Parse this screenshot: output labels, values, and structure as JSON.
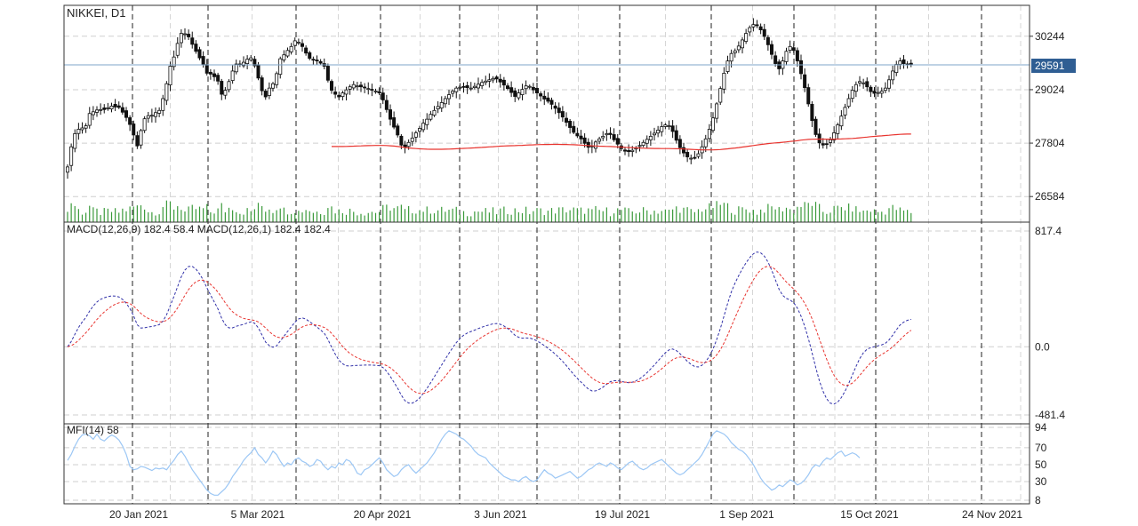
{
  "chart_data": {
    "type": "candlestick",
    "symbol_label": "NIKKEI, D1",
    "current_price": "29591",
    "price_axis": {
      "ticks": [
        "30244",
        "29024",
        "27804",
        "26584"
      ],
      "ylim": [
        26000,
        30950
      ]
    },
    "x_axis": {
      "ticks": [
        "20 Jan 2021",
        "5 Mar 2021",
        "20 Apr 2021",
        "3 Jun 2021",
        "19 Jul 2021",
        "1 Sep 2021",
        "15 Oct 2021",
        "24 Nov 2021"
      ]
    },
    "closes": [
      27260,
      27720,
      28020,
      28120,
      28150,
      28200,
      28480,
      28520,
      28560,
      28570,
      28570,
      28610,
      28650,
      28630,
      28620,
      28510,
      28390,
      28230,
      27990,
      27740,
      28090,
      28360,
      28430,
      28440,
      28500,
      28550,
      28820,
      29160,
      29560,
      29770,
      30080,
      30310,
      30300,
      30230,
      30060,
      29900,
      29750,
      29600,
      29400,
      29380,
      29320,
      29220,
      28920,
      29010,
      29210,
      29450,
      29610,
      29600,
      29650,
      29720,
      29750,
      29570,
      29290,
      29000,
      28860,
      29060,
      29160,
      29390,
      29730,
      29820,
      29920,
      30010,
      30140,
      30110,
      30010,
      29860,
      29740,
      29710,
      29680,
      29630,
      29560,
      29240,
      29010,
      28920,
      28860,
      28950,
      29020,
      29090,
      29140,
      29110,
      29090,
      29070,
      29050,
      29020,
      28990,
      28950,
      28790,
      28570,
      28350,
      28170,
      27990,
      27760,
      27710,
      27820,
      27920,
      28040,
      28140,
      28260,
      28350,
      28460,
      28550,
      28640,
      28730,
      28820,
      28910,
      28990,
      29060,
      29080,
      29080,
      29070,
      29060,
      29100,
      29150,
      29190,
      29220,
      29250,
      29280,
      29270,
      29200,
      29130,
      29050,
      28960,
      28870,
      28950,
      29030,
      29110,
      29100,
      29020,
      28950,
      28880,
      28810,
      28760,
      28690,
      28600,
      28500,
      28400,
      28280,
      28160,
      28050,
      27970,
      27900,
      27800,
      27710,
      27720,
      27830,
      27900,
      27960,
      28020,
      28000,
      27880,
      27780,
      27680,
      27620,
      27610,
      27640,
      27690,
      27750,
      27820,
      27890,
      27960,
      28030,
      28100,
      28180,
      28220,
      28200,
      28070,
      27870,
      27700,
      27580,
      27490,
      27460,
      27470,
      27560,
      27720,
      27900,
      28120,
      28380,
      28700,
      29050,
      29400,
      29680,
      29850,
      29910,
      30020,
      30160,
      30310,
      30440,
      30510,
      30490,
      30390,
      30240,
      30050,
      29830,
      29620,
      29500,
      29680,
      29900,
      30010,
      29920,
      29680,
      29390,
      29070,
      28700,
      28320,
      28000,
      27810,
      27760,
      27780,
      27880,
      28040,
      28220,
      28420,
      28620,
      28820,
      29010,
      29140,
      29210,
      29180,
      29090,
      28980,
      28940,
      28960,
      28990,
      29060,
      29250,
      29450,
      29600,
      29680,
      29620,
      29600,
      29591
    ],
    "ma_label": "",
    "macd": {
      "label": "MACD(12,26,9) 182.4 58.4 MACD(12,26,1) 182.4 182.4",
      "ticks": [
        "817.4",
        "0.0",
        "-481.4"
      ],
      "ylim": [
        -481.4,
        817.4
      ]
    },
    "mfi": {
      "label": "MFI(14) 58",
      "ticks": [
        "94",
        "70",
        "50",
        "30",
        "8"
      ],
      "ylim": [
        8,
        94
      ],
      "values": [
        55,
        62,
        72,
        80,
        85,
        86,
        84,
        80,
        86,
        80,
        78,
        82,
        85,
        83,
        79,
        72,
        62,
        48,
        44,
        45,
        48,
        47,
        45,
        43,
        46,
        45,
        46,
        44,
        50,
        55,
        62,
        66,
        60,
        52,
        44,
        38,
        32,
        26,
        20,
        16,
        14,
        14,
        18,
        22,
        28,
        36,
        42,
        48,
        55,
        60,
        64,
        70,
        62,
        58,
        52,
        58,
        66,
        62,
        54,
        48,
        52,
        50,
        56,
        58,
        54,
        52,
        48,
        50,
        56,
        54,
        48,
        44,
        48,
        46,
        52,
        50,
        56,
        54,
        48,
        40,
        38,
        44,
        46,
        50,
        54,
        58,
        52,
        44,
        40,
        36,
        38,
        44,
        48,
        50,
        44,
        40,
        44,
        48,
        52,
        58,
        64,
        72,
        80,
        86,
        90,
        88,
        86,
        82,
        80,
        76,
        72,
        66,
        62,
        60,
        58,
        52,
        48,
        44,
        40,
        36,
        34,
        32,
        32,
        30,
        34,
        36,
        32,
        30,
        32,
        38,
        44,
        40,
        38,
        34,
        36,
        38,
        40,
        42,
        38,
        34,
        36,
        40,
        44,
        46,
        50,
        52,
        50,
        48,
        52,
        50,
        46,
        44,
        48,
        52,
        54,
        50,
        46,
        44,
        46,
        50,
        52,
        54,
        56,
        52,
        48,
        44,
        40,
        38,
        40,
        44,
        48,
        52,
        56,
        62,
        70,
        78,
        86,
        90,
        88,
        86,
        82,
        76,
        72,
        68,
        66,
        62,
        56,
        50,
        42,
        34,
        28,
        24,
        20,
        22,
        26,
        24,
        28,
        32,
        30,
        26,
        28,
        32,
        38,
        46,
        50,
        48,
        54,
        58,
        56,
        60,
        64,
        66,
        60,
        62,
        64,
        62,
        58
      ]
    }
  }
}
